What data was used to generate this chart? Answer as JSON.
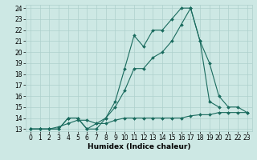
{
  "xlabel": "Humidex (Indice chaleur)",
  "bg_color": "#cde8e4",
  "line_color": "#1a6b5e",
  "grid_color": "#aed0cc",
  "x_min": 0,
  "x_max": 23,
  "y_min": 13,
  "y_max": 24,
  "line1_x": [
    0,
    1,
    2,
    3,
    4,
    5,
    6,
    7,
    8,
    9,
    10,
    11,
    12,
    13,
    14,
    15,
    16,
    17,
    18,
    19,
    20
  ],
  "line1_y": [
    13,
    13,
    13,
    13,
    14,
    14,
    13,
    13,
    14,
    15.5,
    18.5,
    21.5,
    20.5,
    22,
    22,
    23,
    24,
    24,
    21,
    15.5,
    15
  ],
  "line2_x": [
    0,
    1,
    2,
    3,
    4,
    5,
    6,
    7,
    8,
    9,
    10,
    11,
    12,
    13,
    14,
    15,
    16,
    17,
    18,
    19,
    20,
    21,
    22,
    23
  ],
  "line2_y": [
    13,
    13,
    13,
    13,
    14,
    14,
    13,
    13.5,
    14,
    15,
    16.5,
    18.5,
    18.5,
    19.5,
    20,
    21,
    22.5,
    24,
    21,
    19,
    16,
    15,
    15,
    14.5
  ],
  "line3_x": [
    0,
    1,
    2,
    3,
    4,
    5,
    6,
    7,
    8,
    9,
    10,
    11,
    12,
    13,
    14,
    15,
    16,
    17,
    18,
    19,
    20,
    21,
    22,
    23
  ],
  "line3_y": [
    13,
    13,
    13,
    13.2,
    13.5,
    13.8,
    13.8,
    13.5,
    13.5,
    13.8,
    14,
    14,
    14,
    14,
    14,
    14,
    14,
    14.2,
    14.3,
    14.3,
    14.5,
    14.5,
    14.5,
    14.5
  ],
  "marker": "D",
  "marker_size": 2.0,
  "lw": 0.8,
  "font_size_label": 6.5,
  "font_size_tick": 5.5
}
